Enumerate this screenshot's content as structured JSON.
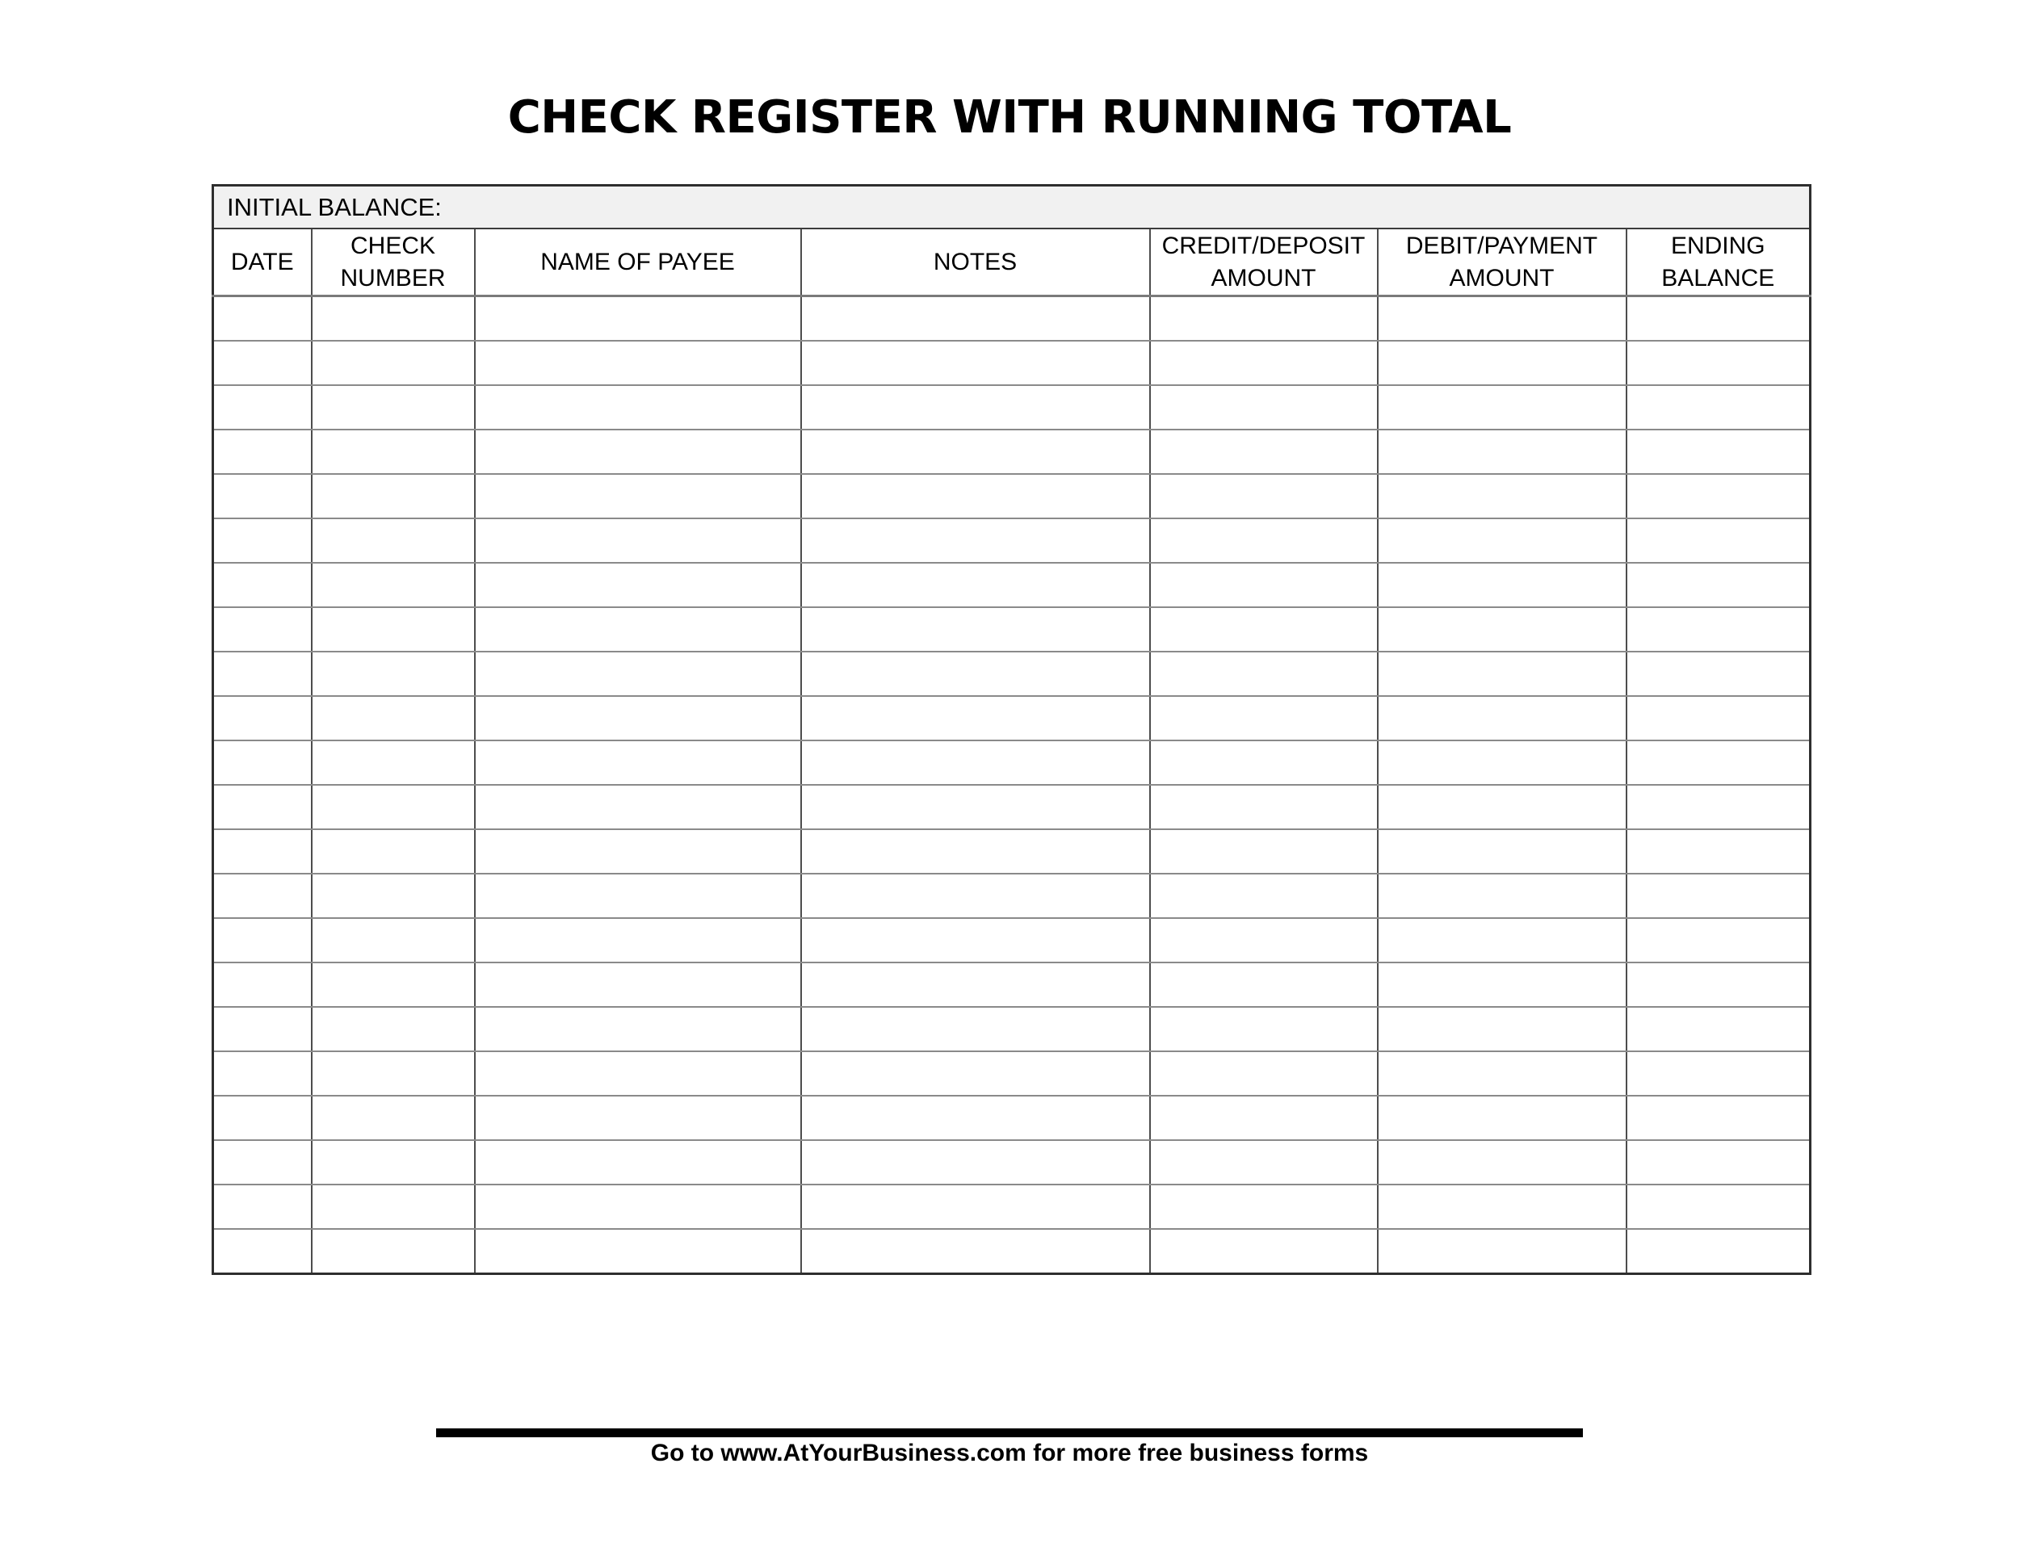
{
  "title": "CHECK REGISTER WITH RUNNING TOTAL",
  "table": {
    "initial_balance_label": "INITIAL BALANCE:",
    "columns": [
      {
        "key": "date",
        "label": "DATE"
      },
      {
        "key": "check-number",
        "label": "CHECK\nNUMBER"
      },
      {
        "key": "name-of-payee",
        "label": "NAME OF PAYEE"
      },
      {
        "key": "notes",
        "label": "NOTES"
      },
      {
        "key": "credit-deposit-amount",
        "label": "CREDIT/DEPOSIT\nAMOUNT"
      },
      {
        "key": "debit-payment-amount",
        "label": "DEBIT/PAYMENT\nAMOUNT"
      },
      {
        "key": "ending-balance",
        "label": "ENDING\nBALANCE"
      }
    ],
    "blank_row_count": 22
  },
  "footer": {
    "text": "Go to www.AtYourBusiness.com for more free business forms"
  },
  "colors": {
    "header_row_fill": "#f1f1f1",
    "grid_horizontal": "#8a8a8a",
    "grid_vertical": "#4d4d4d",
    "outer_border": "#2e2e2e",
    "text": "#000000",
    "footer_bar": "#000000"
  }
}
